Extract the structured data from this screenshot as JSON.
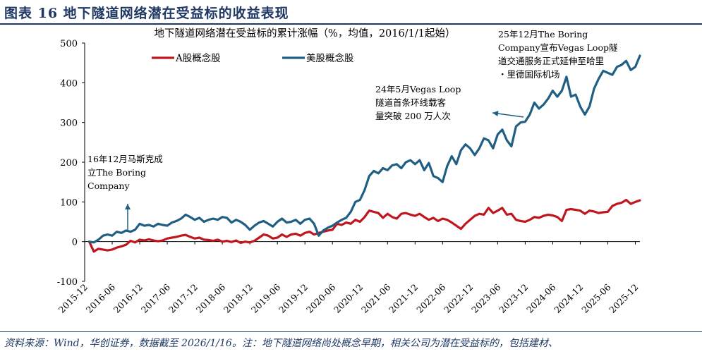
{
  "header": {
    "title": "图表 16    地下隧道网络潜在受益标的收益表现"
  },
  "footer": {
    "source": "资料来源：Wind，华创证券，数据截至 2026/1/16。注：地下隧道网络尚处概念早期，相关公司为潜在受益标的，包括建材、"
  },
  "colors": {
    "a_share": "#c0161e",
    "us_share": "#1f5f84",
    "header": "#1f3864"
  },
  "chart_data": {
    "type": "line",
    "title": "地下隧道网络潜在受益标的累计涨幅（%，均值，2016/1/1起始）",
    "xlabel": "",
    "ylabel": "",
    "ylim": [
      -100,
      500
    ],
    "yticks": [
      "-100",
      "0",
      "100",
      "200",
      "300",
      "400",
      "500"
    ],
    "xticks": [
      "2015-12",
      "2016-06",
      "2016-12",
      "2017-06",
      "2017-12",
      "2018-06",
      "2018-12",
      "2019-06",
      "2019-12",
      "2020-06",
      "2020-12",
      "2021-06",
      "2021-12",
      "2022-06",
      "2022-12",
      "2023-06",
      "2023-12",
      "2024-06",
      "2024-12",
      "2025-06",
      "2025-12"
    ],
    "grid": false,
    "legend": "top-left",
    "series": [
      {
        "name": "A股概念股",
        "color": "#c0161e",
        "points": [
          [
            "2016-01",
            0
          ],
          [
            "2016-02",
            -25
          ],
          [
            "2016-03",
            -18
          ],
          [
            "2016-04",
            -20
          ],
          [
            "2016-05",
            -22
          ],
          [
            "2016-06",
            -20
          ],
          [
            "2016-07",
            -15
          ],
          [
            "2016-08",
            -12
          ],
          [
            "2016-09",
            -8
          ],
          [
            "2016-10",
            2
          ],
          [
            "2016-11",
            -2
          ],
          [
            "2016-12",
            5
          ],
          [
            "2017-01",
            3
          ],
          [
            "2017-02",
            6
          ],
          [
            "2017-03",
            3
          ],
          [
            "2017-04",
            1
          ],
          [
            "2017-05",
            3
          ],
          [
            "2017-06",
            8
          ],
          [
            "2017-07",
            10
          ],
          [
            "2017-08",
            12
          ],
          [
            "2017-09",
            15
          ],
          [
            "2017-10",
            17
          ],
          [
            "2017-11",
            12
          ],
          [
            "2017-12",
            8
          ],
          [
            "2018-01",
            10
          ],
          [
            "2018-02",
            5
          ],
          [
            "2018-03",
            4
          ],
          [
            "2018-04",
            2
          ],
          [
            "2018-05",
            5
          ],
          [
            "2018-06",
            0
          ],
          [
            "2018-07",
            2
          ],
          [
            "2018-08",
            -1
          ],
          [
            "2018-09",
            3
          ],
          [
            "2018-10",
            -3
          ],
          [
            "2018-11",
            0
          ],
          [
            "2018-12",
            -2
          ],
          [
            "2019-01",
            2
          ],
          [
            "2019-02",
            10
          ],
          [
            "2019-03",
            18
          ],
          [
            "2019-04",
            15
          ],
          [
            "2019-05",
            8
          ],
          [
            "2019-06",
            10
          ],
          [
            "2019-07",
            18
          ],
          [
            "2019-08",
            12
          ],
          [
            "2019-09",
            18
          ],
          [
            "2019-10",
            20
          ],
          [
            "2019-11",
            15
          ],
          [
            "2019-12",
            22
          ],
          [
            "2020-01",
            25
          ],
          [
            "2020-02",
            18
          ],
          [
            "2020-03",
            22
          ],
          [
            "2020-04",
            25
          ],
          [
            "2020-05",
            28
          ],
          [
            "2020-06",
            30
          ],
          [
            "2020-07",
            45
          ],
          [
            "2020-08",
            42
          ],
          [
            "2020-09",
            48
          ],
          [
            "2020-10",
            45
          ],
          [
            "2020-11",
            55
          ],
          [
            "2020-12",
            50
          ],
          [
            "2021-01",
            62
          ],
          [
            "2021-02",
            78
          ],
          [
            "2021-03",
            75
          ],
          [
            "2021-04",
            72
          ],
          [
            "2021-05",
            60
          ],
          [
            "2021-06",
            70
          ],
          [
            "2021-07",
            62
          ],
          [
            "2021-08",
            58
          ],
          [
            "2021-09",
            70
          ],
          [
            "2021-10",
            72
          ],
          [
            "2021-11",
            68
          ],
          [
            "2021-12",
            65
          ],
          [
            "2022-01",
            70
          ],
          [
            "2022-02",
            62
          ],
          [
            "2022-03",
            55
          ],
          [
            "2022-04",
            60
          ],
          [
            "2022-05",
            52
          ],
          [
            "2022-06",
            58
          ],
          [
            "2022-07",
            55
          ],
          [
            "2022-08",
            48
          ],
          [
            "2022-09",
            40
          ],
          [
            "2022-10",
            32
          ],
          [
            "2022-11",
            45
          ],
          [
            "2022-12",
            55
          ],
          [
            "2023-01",
            65
          ],
          [
            "2023-02",
            70
          ],
          [
            "2023-03",
            68
          ],
          [
            "2023-04",
            85
          ],
          [
            "2023-05",
            72
          ],
          [
            "2023-06",
            78
          ],
          [
            "2023-07",
            85
          ],
          [
            "2023-08",
            68
          ],
          [
            "2023-09",
            70
          ],
          [
            "2023-10",
            55
          ],
          [
            "2023-11",
            52
          ],
          [
            "2023-12",
            50
          ],
          [
            "2024-01",
            55
          ],
          [
            "2024-02",
            62
          ],
          [
            "2024-03",
            60
          ],
          [
            "2024-04",
            65
          ],
          [
            "2024-05",
            68
          ],
          [
            "2024-06",
            66
          ],
          [
            "2024-07",
            62
          ],
          [
            "2024-08",
            52
          ],
          [
            "2024-09",
            80
          ],
          [
            "2024-10",
            82
          ],
          [
            "2024-11",
            80
          ],
          [
            "2024-12",
            78
          ],
          [
            "2025-01",
            70
          ],
          [
            "2025-02",
            78
          ],
          [
            "2025-03",
            76
          ],
          [
            "2025-04",
            72
          ],
          [
            "2025-05",
            74
          ],
          [
            "2025-06",
            75
          ],
          [
            "2025-07",
            90
          ],
          [
            "2025-08",
            95
          ],
          [
            "2025-09",
            98
          ],
          [
            "2025-10",
            105
          ],
          [
            "2025-11",
            95
          ],
          [
            "2025-12",
            100
          ],
          [
            "2026-01",
            104
          ]
        ]
      },
      {
        "name": "美股概念股",
        "color": "#1f5f84",
        "points": [
          [
            "2016-01",
            0
          ],
          [
            "2016-02",
            -2
          ],
          [
            "2016-03",
            5
          ],
          [
            "2016-04",
            15
          ],
          [
            "2016-05",
            18
          ],
          [
            "2016-06",
            15
          ],
          [
            "2016-07",
            25
          ],
          [
            "2016-08",
            22
          ],
          [
            "2016-09",
            28
          ],
          [
            "2016-10",
            25
          ],
          [
            "2016-11",
            30
          ],
          [
            "2016-12",
            45
          ],
          [
            "2017-01",
            40
          ],
          [
            "2017-02",
            42
          ],
          [
            "2017-03",
            38
          ],
          [
            "2017-04",
            45
          ],
          [
            "2017-05",
            42
          ],
          [
            "2017-06",
            40
          ],
          [
            "2017-07",
            48
          ],
          [
            "2017-08",
            52
          ],
          [
            "2017-09",
            58
          ],
          [
            "2017-10",
            68
          ],
          [
            "2017-11",
            62
          ],
          [
            "2017-12",
            55
          ],
          [
            "2018-01",
            60
          ],
          [
            "2018-02",
            50
          ],
          [
            "2018-03",
            55
          ],
          [
            "2018-04",
            58
          ],
          [
            "2018-05",
            55
          ],
          [
            "2018-06",
            62
          ],
          [
            "2018-07",
            60
          ],
          [
            "2018-08",
            48
          ],
          [
            "2018-09",
            55
          ],
          [
            "2018-10",
            50
          ],
          [
            "2018-11",
            42
          ],
          [
            "2018-12",
            30
          ],
          [
            "2019-01",
            40
          ],
          [
            "2019-02",
            48
          ],
          [
            "2019-03",
            52
          ],
          [
            "2019-04",
            45
          ],
          [
            "2019-05",
            38
          ],
          [
            "2019-06",
            50
          ],
          [
            "2019-07",
            58
          ],
          [
            "2019-08",
            48
          ],
          [
            "2019-09",
            50
          ],
          [
            "2019-10",
            55
          ],
          [
            "2019-11",
            45
          ],
          [
            "2019-12",
            55
          ],
          [
            "2020-01",
            58
          ],
          [
            "2020-02",
            45
          ],
          [
            "2020-03",
            15
          ],
          [
            "2020-04",
            28
          ],
          [
            "2020-05",
            35
          ],
          [
            "2020-06",
            40
          ],
          [
            "2020-07",
            48
          ],
          [
            "2020-08",
            55
          ],
          [
            "2020-09",
            60
          ],
          [
            "2020-10",
            75
          ],
          [
            "2020-11",
            100
          ],
          [
            "2020-12",
            105
          ],
          [
            "2021-01",
            130
          ],
          [
            "2021-02",
            165
          ],
          [
            "2021-03",
            178
          ],
          [
            "2021-04",
            172
          ],
          [
            "2021-05",
            185
          ],
          [
            "2021-06",
            180
          ],
          [
            "2021-07",
            192
          ],
          [
            "2021-08",
            195
          ],
          [
            "2021-09",
            185
          ],
          [
            "2021-10",
            200
          ],
          [
            "2021-11",
            205
          ],
          [
            "2021-12",
            195
          ],
          [
            "2022-01",
            205
          ],
          [
            "2022-02",
            180
          ],
          [
            "2022-03",
            198
          ],
          [
            "2022-04",
            165
          ],
          [
            "2022-05",
            160
          ],
          [
            "2022-06",
            150
          ],
          [
            "2022-07",
            190
          ],
          [
            "2022-08",
            215
          ],
          [
            "2022-09",
            195
          ],
          [
            "2022-10",
            230
          ],
          [
            "2022-11",
            245
          ],
          [
            "2022-12",
            235
          ],
          [
            "2023-01",
            218
          ],
          [
            "2023-02",
            235
          ],
          [
            "2023-03",
            260
          ],
          [
            "2023-04",
            255
          ],
          [
            "2023-05",
            235
          ],
          [
            "2023-06",
            270
          ],
          [
            "2023-07",
            282
          ],
          [
            "2023-08",
            255
          ],
          [
            "2023-09",
            240
          ],
          [
            "2023-10",
            290
          ],
          [
            "2023-11",
            300
          ],
          [
            "2023-12",
            302
          ],
          [
            "2024-01",
            320
          ],
          [
            "2024-02",
            350
          ],
          [
            "2024-03",
            335
          ],
          [
            "2024-04",
            345
          ],
          [
            "2024-05",
            360
          ],
          [
            "2024-06",
            380
          ],
          [
            "2024-07",
            365
          ],
          [
            "2024-08",
            380
          ],
          [
            "2024-09",
            415
          ],
          [
            "2024-10",
            365
          ],
          [
            "2024-11",
            370
          ],
          [
            "2024-12",
            340
          ],
          [
            "2025-01",
            320
          ],
          [
            "2025-02",
            340
          ],
          [
            "2025-03",
            385
          ],
          [
            "2025-04",
            410
          ],
          [
            "2025-05",
            430
          ],
          [
            "2025-06",
            425
          ],
          [
            "2025-07",
            420
          ],
          [
            "2025-08",
            440
          ],
          [
            "2025-09",
            445
          ],
          [
            "2025-10",
            455
          ],
          [
            "2025-11",
            432
          ],
          [
            "2025-12",
            440
          ],
          [
            "2026-01",
            468
          ]
        ]
      }
    ],
    "annotations": [
      {
        "lines": [
          "16年12月马斯克成",
          "立The Boring",
          "Company"
        ]
      },
      {
        "lines": [
          "24年5月Vegas Loop",
          "隧道首条环线载客",
          "量突破 200 万人次"
        ]
      },
      {
        "lines": [
          "25年12月The Boring",
          "Company宣布Vegas Loop隧",
          "道交通服务正式延伸至哈里",
          "・里德国际机场"
        ]
      }
    ]
  }
}
